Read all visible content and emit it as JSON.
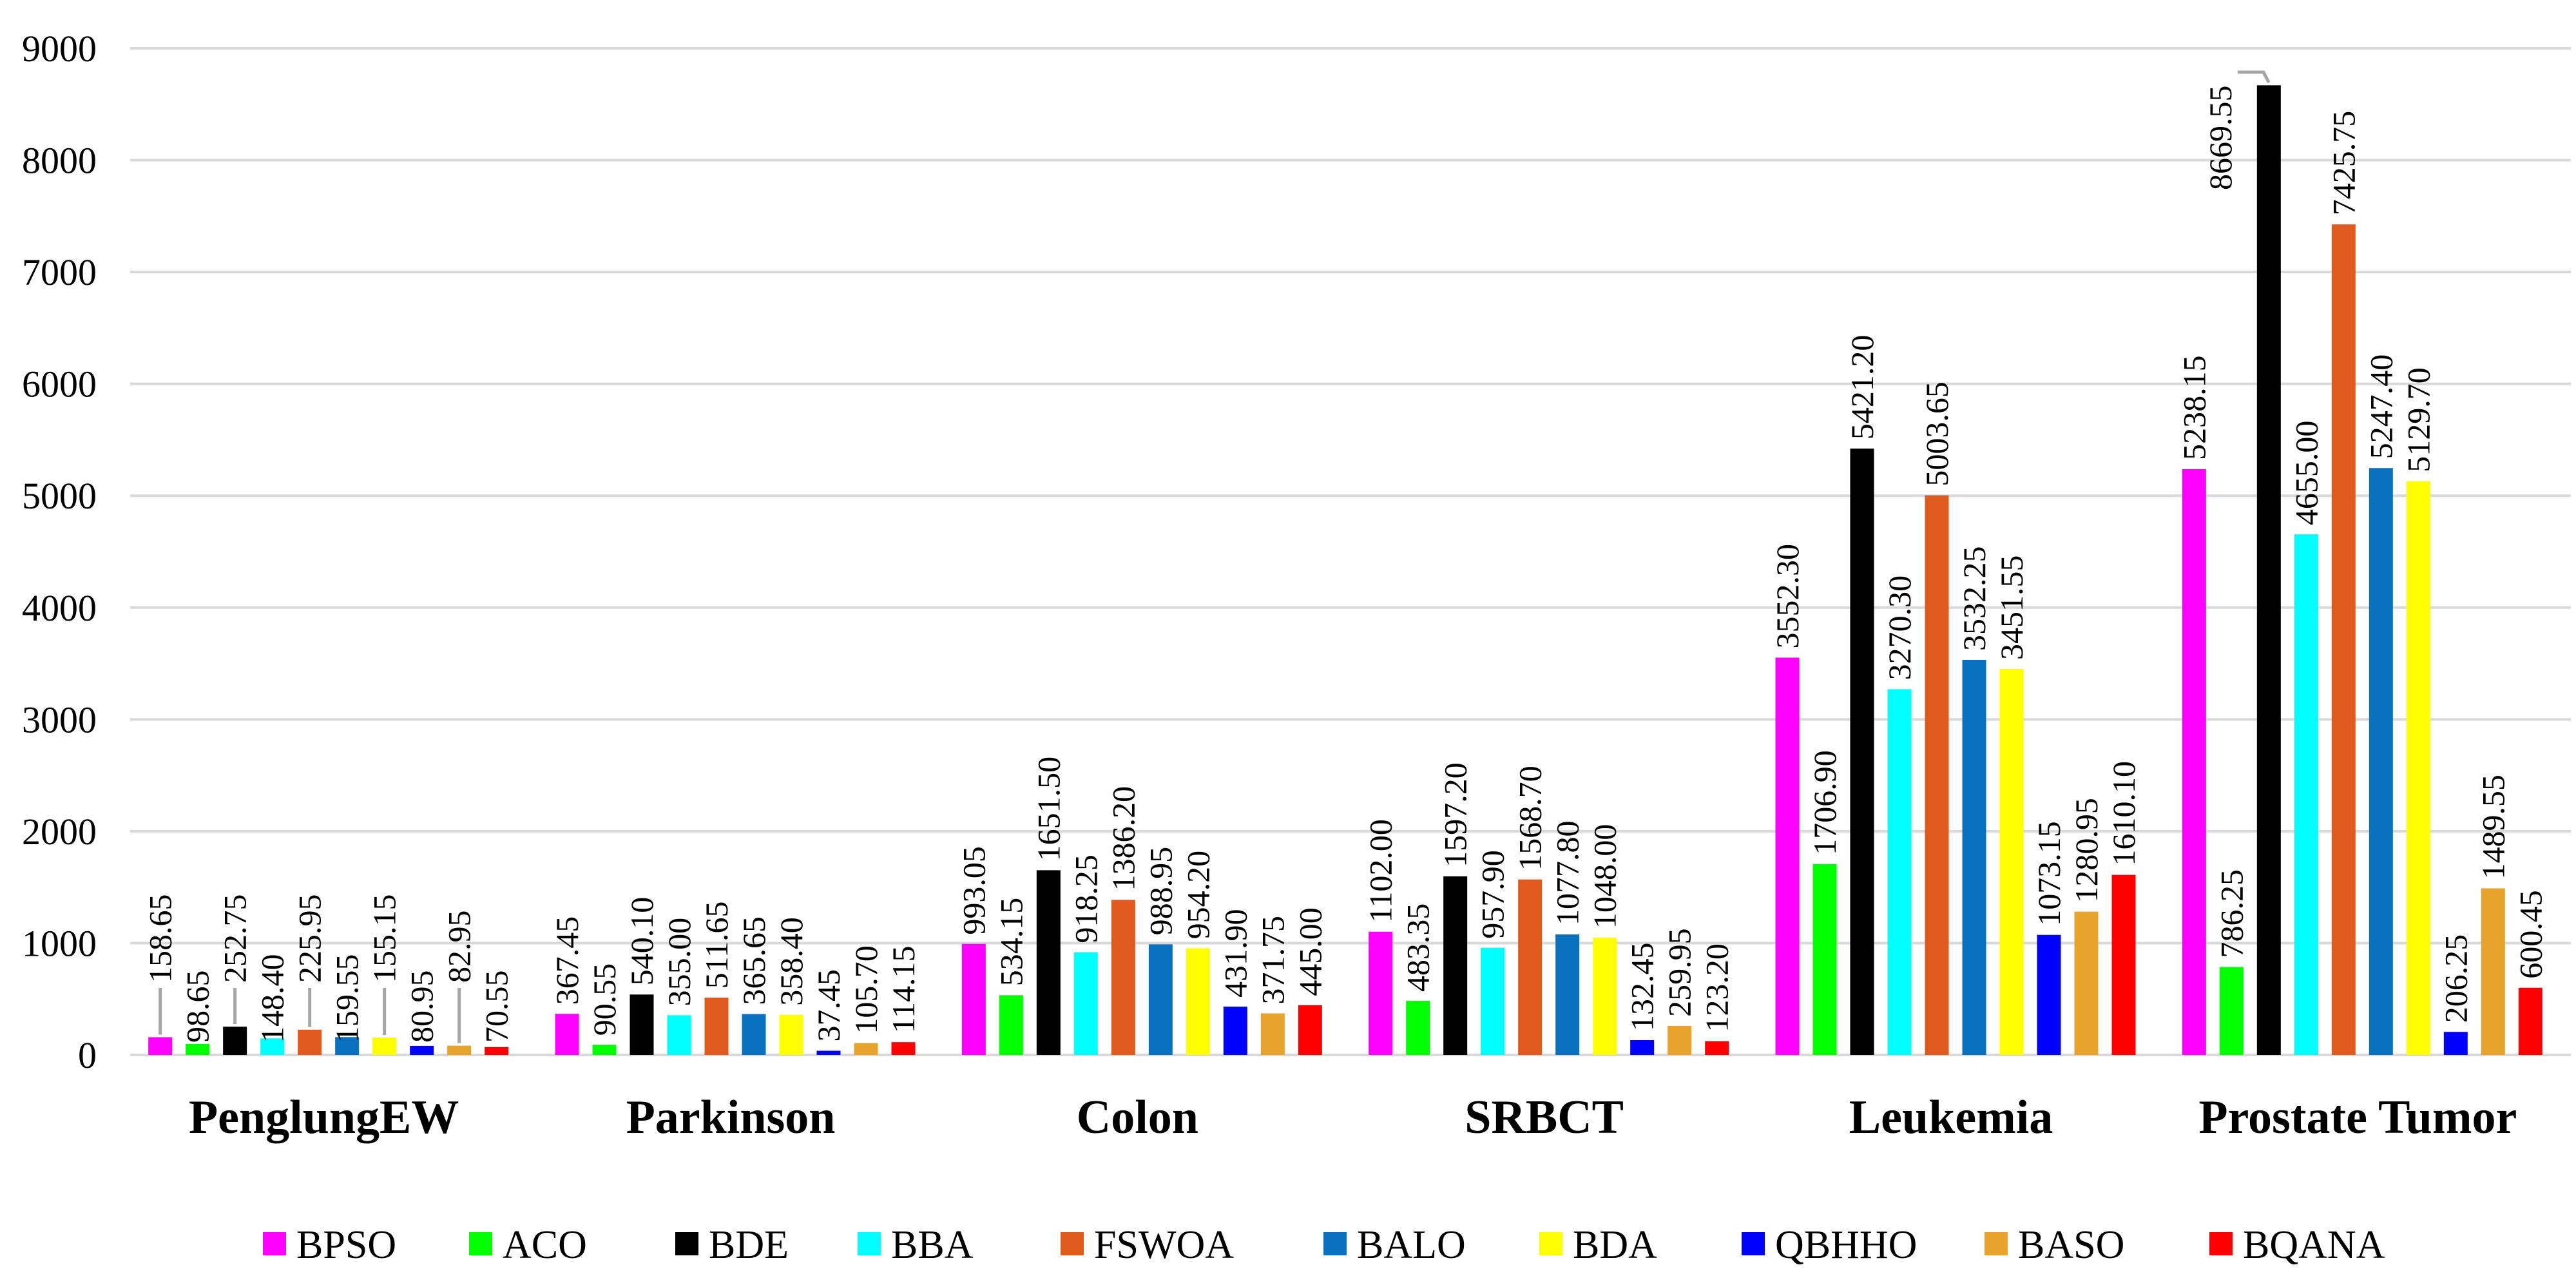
{
  "chart_data": {
    "type": "bar",
    "title": "",
    "xlabel": "",
    "ylabel": "",
    "ylim": [
      0,
      9000
    ],
    "yticks": [
      0,
      1000,
      2000,
      3000,
      4000,
      5000,
      6000,
      7000,
      8000,
      9000
    ],
    "ytick_labels": [
      "0",
      "1000",
      "2000",
      "3000",
      "4000",
      "5000",
      "6000",
      "7000",
      "8000",
      "9000"
    ],
    "grid": true,
    "legend_position": "bottom",
    "categories": [
      "PenglungEW",
      "Parkinson",
      "Colon",
      "SRBCT",
      "Leukemia",
      "Prostate Tumor"
    ],
    "series": [
      {
        "name": "BPSO",
        "color": "#ff00ff",
        "values": [
          158.65,
          367.45,
          993.05,
          1102.0,
          3552.3,
          5238.15
        ],
        "labels": [
          "158.65",
          "367.45",
          "993.05",
          "1102.00",
          "3552.30",
          "5238.15"
        ]
      },
      {
        "name": "ACO",
        "color": "#00ff00",
        "values": [
          98.65,
          90.55,
          534.15,
          483.35,
          1706.9,
          786.25
        ],
        "labels": [
          "98.65",
          "90.55",
          "534.15",
          "483.35",
          "1706.90",
          "786.25"
        ]
      },
      {
        "name": "BDE",
        "color": "#000000",
        "values": [
          252.75,
          540.1,
          1651.5,
          1597.2,
          5421.2,
          8669.55
        ],
        "labels": [
          "252.75",
          "540.10",
          "1651.50",
          "1597.20",
          "5421.20",
          "8669.55"
        ]
      },
      {
        "name": "BBA",
        "color": "#00ffff",
        "values": [
          148.4,
          355.0,
          918.25,
          957.9,
          3270.3,
          4655.0
        ],
        "labels": [
          "148.40",
          "355.00",
          "918.25",
          "957.90",
          "3270.30",
          "4655.00"
        ]
      },
      {
        "name": "FSWOA",
        "color": "#e05a1e",
        "values": [
          225.95,
          511.65,
          1386.2,
          1568.7,
          5003.65,
          7425.75
        ],
        "labels": [
          "225.95",
          "511.65",
          "1386.20",
          "1568.70",
          "5003.65",
          "7425.75"
        ]
      },
      {
        "name": "BALO",
        "color": "#0a70c0",
        "values": [
          159.55,
          365.65,
          988.95,
          1077.8,
          3532.25,
          5247.4
        ],
        "labels": [
          "159.55",
          "365.65",
          "988.95",
          "1077.80",
          "3532.25",
          "5247.40"
        ]
      },
      {
        "name": "BDA",
        "color": "#ffff00",
        "values": [
          155.15,
          358.4,
          954.2,
          1048.0,
          3451.55,
          5129.7
        ],
        "labels": [
          "155.15",
          "358.40",
          "954.20",
          "1048.00",
          "3451.55",
          "5129.70"
        ]
      },
      {
        "name": "QBHHO",
        "color": "#0000ff",
        "values": [
          80.95,
          37.45,
          431.9,
          132.45,
          1073.15,
          206.25
        ],
        "labels": [
          "80.95",
          "37.45",
          "431.90",
          "132.45",
          "1073.15",
          "206.25"
        ]
      },
      {
        "name": "BASO",
        "color": "#e8a32c",
        "values": [
          82.95,
          105.7,
          371.75,
          259.95,
          1280.95,
          1489.55
        ],
        "labels": [
          "82.95",
          "105.70",
          "371.75",
          "259.95",
          "1280.95",
          "1489.55"
        ]
      },
      {
        "name": "BQANA",
        "color": "#ff0000",
        "values": [
          70.55,
          114.15,
          445.0,
          123.2,
          1610.1,
          600.45
        ],
        "labels": [
          "70.55",
          "114.15",
          "445.00",
          "123.20",
          "1610.10",
          "600.45"
        ]
      }
    ]
  }
}
